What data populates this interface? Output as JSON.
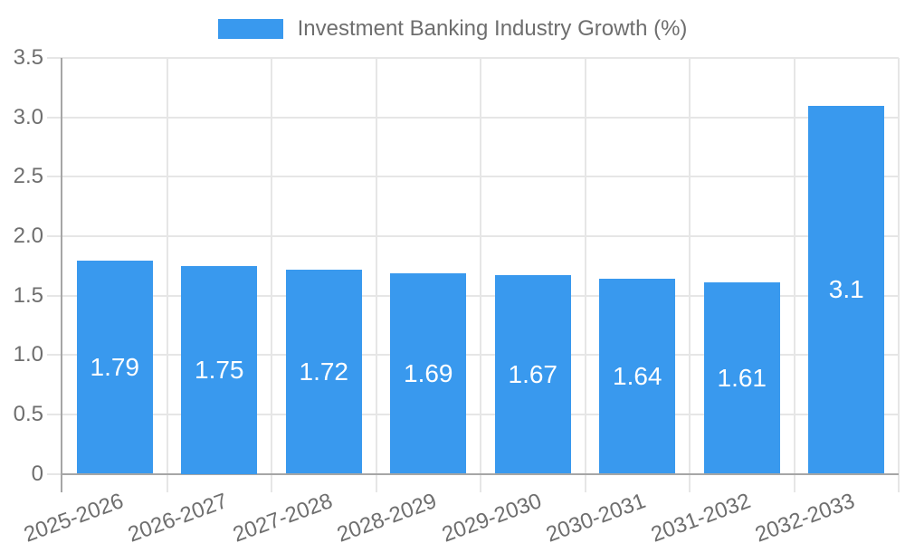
{
  "chart_data": {
    "type": "bar",
    "title": "Investment Banking Industry Growth (%)",
    "legend": {
      "label": "Investment Banking Industry Growth (%)",
      "position": "top"
    },
    "categories": [
      "2025-2026",
      "2026-2027",
      "2027-2028",
      "2028-2029",
      "2029-2030",
      "2030-2031",
      "2031-2032",
      "2032-2033"
    ],
    "values": [
      1.79,
      1.75,
      1.72,
      1.69,
      1.67,
      1.64,
      1.61,
      3.1
    ],
    "value_labels": [
      "1.79",
      "1.75",
      "1.72",
      "1.69",
      "1.67",
      "1.64",
      "1.61",
      "3.1"
    ],
    "xlabel": "",
    "ylabel": "",
    "ylim": [
      0,
      3.5
    ],
    "yticks": [
      0,
      0.5,
      1.0,
      1.5,
      2.0,
      2.5,
      3.0,
      3.5
    ],
    "ytick_labels": [
      "0",
      "0.5",
      "1.0",
      "1.5",
      "2.0",
      "2.5",
      "3.0",
      "3.5"
    ],
    "grid": true,
    "colors": {
      "bar": "#3999ee",
      "grid": "#e6e6e6",
      "axis": "#a6a6a6",
      "tick_text": "#6e6e6e",
      "value_label_text": "#ffffff",
      "background": "#ffffff"
    }
  }
}
